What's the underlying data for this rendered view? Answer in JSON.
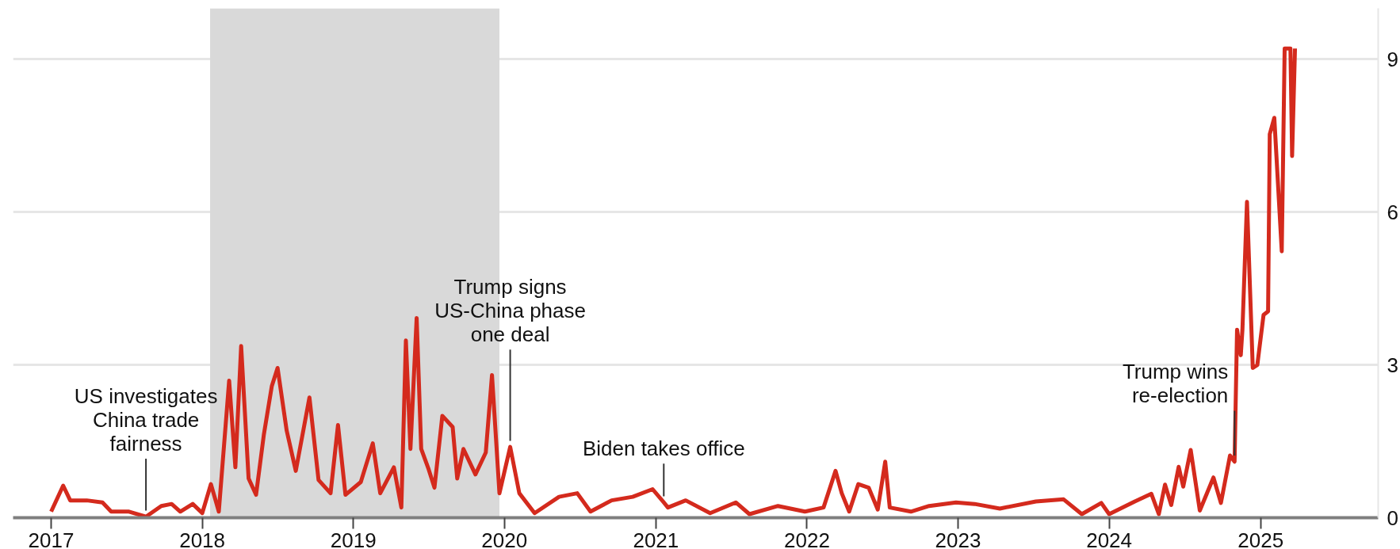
{
  "chart_data": {
    "type": "line",
    "x": [
      "2017-01-01",
      "2017-01-30",
      "2017-02-16",
      "2017-03-28",
      "2017-05-05",
      "2017-05-26",
      "2017-07-08",
      "2017-08-18",
      "2017-09-24",
      "2017-10-19",
      "2017-11-09",
      "2017-12-09",
      "2018-01-01",
      "2018-01-22",
      "2018-02-10",
      "2018-03-07",
      "2018-03-22",
      "2018-04-05",
      "2018-04-23",
      "2018-05-11",
      "2018-05-30",
      "2018-06-18",
      "2018-07-02",
      "2018-07-24",
      "2018-08-15",
      "2018-09-17",
      "2018-10-09",
      "2018-11-07",
      "2018-11-25",
      "2018-12-13",
      "2019-01-19",
      "2019-02-17",
      "2019-03-07",
      "2019-04-09",
      "2019-04-27",
      "2019-05-08",
      "2019-05-19",
      "2019-06-03",
      "2019-06-14",
      "2019-07-02",
      "2019-07-16",
      "2019-08-04",
      "2019-08-29",
      "2019-09-09",
      "2019-09-24",
      "2019-10-23",
      "2019-11-17",
      "2019-12-02",
      "2019-12-20",
      "2020-01-15",
      "2020-02-06",
      "2020-03-14",
      "2020-05-12",
      "2020-06-25",
      "2020-07-27",
      "2020-09-16",
      "2020-11-06",
      "2020-12-24",
      "2021-01-20",
      "2021-01-30",
      "2021-03-14",
      "2021-05-12",
      "2021-07-13",
      "2021-08-15",
      "2021-10-23",
      "2021-12-27",
      "2022-02-10",
      "2022-03-11",
      "2022-03-26",
      "2022-04-13",
      "2022-05-05",
      "2022-05-30",
      "2022-06-21",
      "2022-07-09",
      "2022-07-20",
      "2022-09-09",
      "2022-10-23",
      "2022-12-27",
      "2023-02-10",
      "2023-04-12",
      "2023-07-08",
      "2023-09-13",
      "2023-10-27",
      "2023-12-13",
      "2024-01-01",
      "2024-03-03",
      "2024-04-12",
      "2024-04-30",
      "2024-05-15",
      "2024-05-30",
      "2024-06-17",
      "2024-06-28",
      "2024-07-16",
      "2024-08-07",
      "2024-09-09",
      "2024-09-27",
      "2024-10-19",
      "2024-10-30",
      "2024-11-05",
      "2024-11-14",
      "2024-11-18",
      "2024-11-29",
      "2024-12-13",
      "2024-12-24",
      "2025-01-08",
      "2025-01-19",
      "2025-01-23",
      "2025-02-03",
      "2025-02-21",
      "2025-02-28",
      "2025-03-14",
      "2025-03-18",
      "2025-03-25"
    ],
    "series": [
      {
        "color": "#d42a1d",
        "values": [
          0.12,
          0.63,
          0.34,
          0.34,
          0.3,
          0.12,
          0.12,
          0.02,
          0.23,
          0.27,
          0.12,
          0.27,
          0.09,
          0.66,
          0.12,
          2.69,
          0.99,
          3.37,
          0.77,
          0.45,
          1.64,
          2.58,
          2.94,
          1.71,
          0.92,
          2.36,
          0.74,
          0.48,
          1.82,
          0.45,
          0.7,
          1.46,
          0.48,
          0.99,
          0.2,
          3.48,
          1.35,
          3.92,
          1.35,
          0.95,
          0.59,
          2.0,
          1.78,
          0.77,
          1.35,
          0.85,
          1.28,
          2.8,
          0.48,
          1.39,
          0.48,
          0.09,
          0.41,
          0.48,
          0.12,
          0.34,
          0.41,
          0.56,
          0.3,
          0.2,
          0.34,
          0.09,
          0.3,
          0.07,
          0.23,
          0.12,
          0.2,
          0.92,
          0.48,
          0.12,
          0.66,
          0.59,
          0.16,
          1.1,
          0.2,
          0.12,
          0.23,
          0.3,
          0.27,
          0.18,
          0.32,
          0.36,
          0.07,
          0.29,
          0.07,
          0.32,
          0.47,
          0.07,
          0.65,
          0.25,
          1.0,
          0.61,
          1.33,
          0.14,
          0.79,
          0.29,
          1.22,
          1.1,
          3.69,
          3.19,
          3.69,
          6.2,
          2.94,
          3.0,
          3.98,
          4.05,
          7.53,
          7.85,
          5.23,
          9.21,
          9.21,
          7.1,
          9.21
        ]
      }
    ],
    "xlim": [
      "2016-10-01",
      "2025-10-12"
    ],
    "xticks": [
      "2017",
      "2018",
      "2019",
      "2020",
      "2021",
      "2022",
      "2023",
      "2024",
      "2025"
    ],
    "ylim": [
      0,
      10
    ],
    "yticks": [
      0,
      3,
      6,
      9
    ],
    "grid": "y",
    "line_style": "solid",
    "bands": [
      {
        "axis": "x",
        "from": "2018-01-20",
        "to": "2019-12-20",
        "color": "#d9d9d9"
      }
    ],
    "annotations": [
      {
        "text": "US investigates\nChina trade\nfairness",
        "x": "2017-08-18",
        "y": 0.02
      },
      {
        "text": "Trump signs\nUS-China phase\none deal",
        "x": "2020-01-15",
        "y": 1.39
      },
      {
        "text": "Biden takes office",
        "x": "2021-01-20",
        "y": 0.3
      },
      {
        "text": "Trump wins\nre-election",
        "x": "2024-10-30",
        "y": 1.1
      }
    ]
  }
}
